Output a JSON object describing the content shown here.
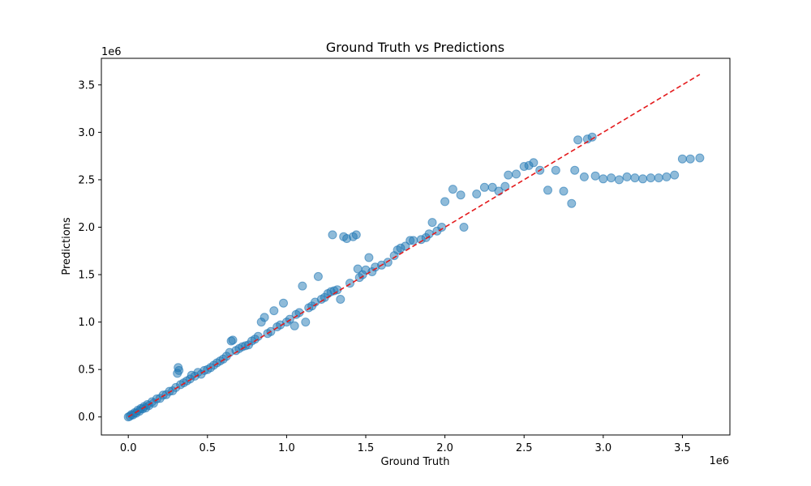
{
  "chart_data": {
    "type": "scatter",
    "title": "Ground Truth vs Predictions",
    "xlabel": "Ground Truth",
    "ylabel": "Predictions",
    "x_offset_label": "1e6",
    "y_offset_label": "1e6",
    "xlim": [
      -170000,
      3800000
    ],
    "ylim": [
      -190000,
      3780000
    ],
    "x_ticks": [
      {
        "value": 0,
        "label": "0.0"
      },
      {
        "value": 500000,
        "label": "0.5"
      },
      {
        "value": 1000000,
        "label": "1.0"
      },
      {
        "value": 1500000,
        "label": "1.5"
      },
      {
        "value": 2000000,
        "label": "2.0"
      },
      {
        "value": 2500000,
        "label": "2.5"
      },
      {
        "value": 3000000,
        "label": "3.0"
      },
      {
        "value": 3500000,
        "label": "3.5"
      }
    ],
    "y_ticks": [
      {
        "value": 0,
        "label": "0.0"
      },
      {
        "value": 500000,
        "label": "0.5"
      },
      {
        "value": 1000000,
        "label": "1.0"
      },
      {
        "value": 1500000,
        "label": "1.5"
      },
      {
        "value": 2000000,
        "label": "2.0"
      },
      {
        "value": 2500000,
        "label": "2.5"
      },
      {
        "value": 3000000,
        "label": "3.0"
      },
      {
        "value": 3500000,
        "label": "3.5"
      }
    ],
    "grid": false,
    "colors": {
      "points": "#1f77b4",
      "reference_line": "#e41a1c"
    },
    "reference_line": {
      "x": [
        0,
        3610000
      ],
      "y": [
        0,
        3610000
      ],
      "style": "dashed"
    },
    "series": [
      {
        "name": "",
        "points": [
          [
            0,
            0
          ],
          [
            10000,
            8000
          ],
          [
            20000,
            25000
          ],
          [
            30000,
            22000
          ],
          [
            40000,
            45000
          ],
          [
            50000,
            40000
          ],
          [
            60000,
            70000
          ],
          [
            70000,
            60000
          ],
          [
            80000,
            90000
          ],
          [
            90000,
            85000
          ],
          [
            100000,
            110000
          ],
          [
            110000,
            95000
          ],
          [
            120000,
            130000
          ],
          [
            130000,
            120000
          ],
          [
            150000,
            160000
          ],
          [
            160000,
            145000
          ],
          [
            180000,
            190000
          ],
          [
            200000,
            195000
          ],
          [
            220000,
            230000
          ],
          [
            240000,
            235000
          ],
          [
            260000,
            270000
          ],
          [
            280000,
            275000
          ],
          [
            300000,
            310000
          ],
          [
            310000,
            460000
          ],
          [
            315000,
            520000
          ],
          [
            320000,
            490000
          ],
          [
            330000,
            340000
          ],
          [
            350000,
            360000
          ],
          [
            370000,
            380000
          ],
          [
            390000,
            400000
          ],
          [
            400000,
            440000
          ],
          [
            420000,
            430000
          ],
          [
            440000,
            470000
          ],
          [
            460000,
            450000
          ],
          [
            480000,
            490000
          ],
          [
            500000,
            500000
          ],
          [
            520000,
            520000
          ],
          [
            540000,
            545000
          ],
          [
            560000,
            570000
          ],
          [
            580000,
            590000
          ],
          [
            600000,
            610000
          ],
          [
            620000,
            640000
          ],
          [
            640000,
            680000
          ],
          [
            650000,
            800000
          ],
          [
            660000,
            810000
          ],
          [
            680000,
            700000
          ],
          [
            700000,
            720000
          ],
          [
            720000,
            740000
          ],
          [
            740000,
            750000
          ],
          [
            760000,
            760000
          ],
          [
            780000,
            800000
          ],
          [
            800000,
            820000
          ],
          [
            820000,
            850000
          ],
          [
            840000,
            1000000
          ],
          [
            860000,
            1050000
          ],
          [
            880000,
            880000
          ],
          [
            900000,
            900000
          ],
          [
            920000,
            1120000
          ],
          [
            940000,
            950000
          ],
          [
            960000,
            970000
          ],
          [
            980000,
            1200000
          ],
          [
            1000000,
            1000000
          ],
          [
            1020000,
            1030000
          ],
          [
            1050000,
            960000
          ],
          [
            1060000,
            1080000
          ],
          [
            1080000,
            1100000
          ],
          [
            1100000,
            1380000
          ],
          [
            1120000,
            1000000
          ],
          [
            1140000,
            1150000
          ],
          [
            1160000,
            1170000
          ],
          [
            1180000,
            1210000
          ],
          [
            1200000,
            1480000
          ],
          [
            1220000,
            1240000
          ],
          [
            1240000,
            1260000
          ],
          [
            1260000,
            1300000
          ],
          [
            1280000,
            1320000
          ],
          [
            1290000,
            1920000
          ],
          [
            1300000,
            1330000
          ],
          [
            1320000,
            1340000
          ],
          [
            1340000,
            1240000
          ],
          [
            1360000,
            1900000
          ],
          [
            1380000,
            1880000
          ],
          [
            1400000,
            1410000
          ],
          [
            1420000,
            1900000
          ],
          [
            1440000,
            1920000
          ],
          [
            1450000,
            1560000
          ],
          [
            1460000,
            1470000
          ],
          [
            1480000,
            1500000
          ],
          [
            1500000,
            1550000
          ],
          [
            1520000,
            1680000
          ],
          [
            1540000,
            1530000
          ],
          [
            1560000,
            1580000
          ],
          [
            1600000,
            1600000
          ],
          [
            1640000,
            1630000
          ],
          [
            1680000,
            1700000
          ],
          [
            1700000,
            1760000
          ],
          [
            1720000,
            1780000
          ],
          [
            1750000,
            1800000
          ],
          [
            1780000,
            1860000
          ],
          [
            1800000,
            1860000
          ],
          [
            1850000,
            1870000
          ],
          [
            1880000,
            1890000
          ],
          [
            1900000,
            1930000
          ],
          [
            1920000,
            2050000
          ],
          [
            1950000,
            1960000
          ],
          [
            1980000,
            2000000
          ],
          [
            2000000,
            2270000
          ],
          [
            2050000,
            2400000
          ],
          [
            2100000,
            2340000
          ],
          [
            2120000,
            2000000
          ],
          [
            2200000,
            2350000
          ],
          [
            2250000,
            2420000
          ],
          [
            2300000,
            2420000
          ],
          [
            2340000,
            2380000
          ],
          [
            2380000,
            2430000
          ],
          [
            2400000,
            2550000
          ],
          [
            2450000,
            2560000
          ],
          [
            2500000,
            2640000
          ],
          [
            2530000,
            2650000
          ],
          [
            2560000,
            2680000
          ],
          [
            2600000,
            2600000
          ],
          [
            2650000,
            2390000
          ],
          [
            2700000,
            2600000
          ],
          [
            2750000,
            2380000
          ],
          [
            2800000,
            2250000
          ],
          [
            2820000,
            2600000
          ],
          [
            2840000,
            2920000
          ],
          [
            2880000,
            2530000
          ],
          [
            2900000,
            2930000
          ],
          [
            2930000,
            2950000
          ],
          [
            2950000,
            2540000
          ],
          [
            3000000,
            2510000
          ],
          [
            3050000,
            2520000
          ],
          [
            3100000,
            2500000
          ],
          [
            3150000,
            2530000
          ],
          [
            3200000,
            2520000
          ],
          [
            3250000,
            2510000
          ],
          [
            3300000,
            2520000
          ],
          [
            3350000,
            2520000
          ],
          [
            3400000,
            2530000
          ],
          [
            3450000,
            2550000
          ],
          [
            3500000,
            2720000
          ],
          [
            3550000,
            2720000
          ],
          [
            3610000,
            2730000
          ]
        ]
      }
    ]
  }
}
